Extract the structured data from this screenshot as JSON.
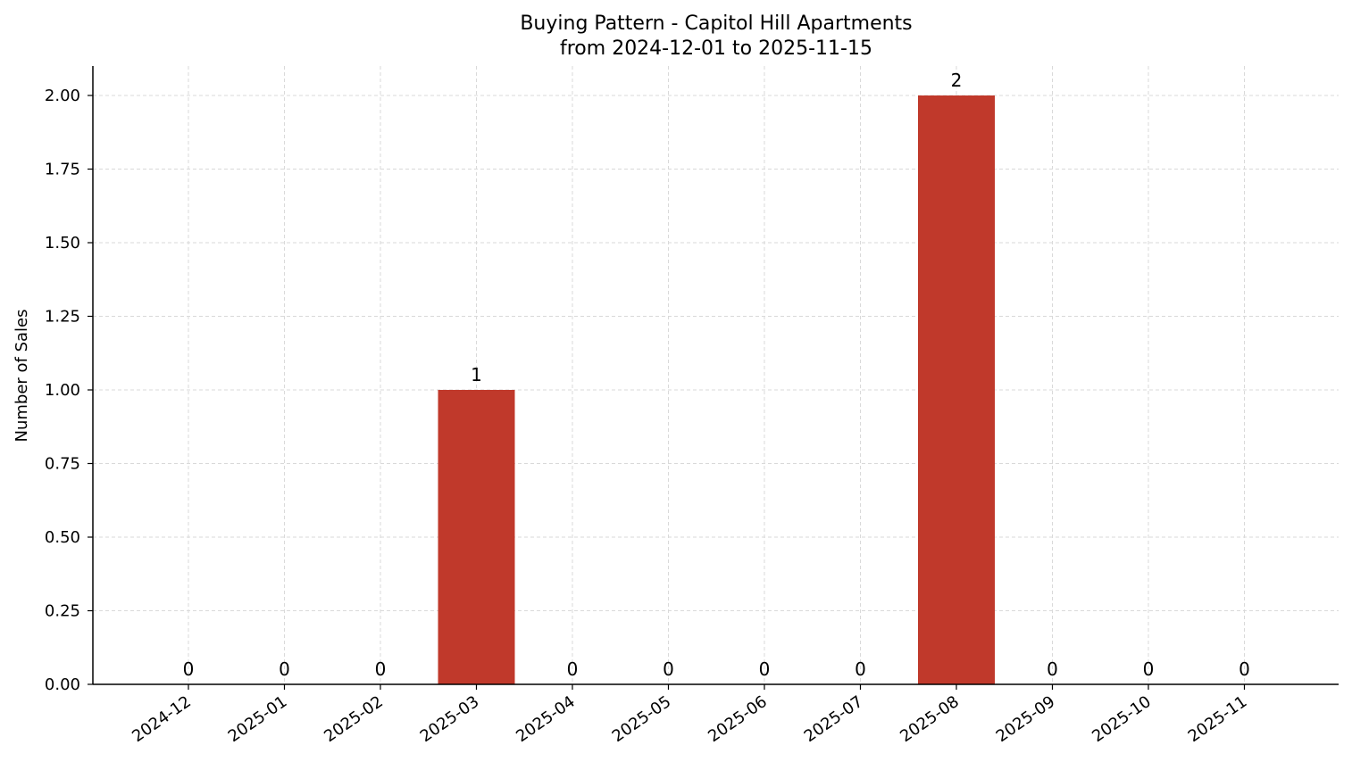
{
  "chart_data": {
    "type": "bar",
    "title": "Buying Pattern - Capitol Hill Apartments",
    "subtitle": "from 2024-12-01 to 2025-11-15",
    "xlabel": "",
    "ylabel": "Number of Sales",
    "categories": [
      "2024-12",
      "2025-01",
      "2025-02",
      "2025-03",
      "2025-04",
      "2025-05",
      "2025-06",
      "2025-07",
      "2025-08",
      "2025-09",
      "2025-10",
      "2025-11"
    ],
    "values": [
      0,
      0,
      0,
      1,
      0,
      0,
      0,
      0,
      2,
      0,
      0,
      0
    ],
    "data_labels": [
      "0",
      "0",
      "0",
      "1",
      "0",
      "0",
      "0",
      "0",
      "2",
      "0",
      "0",
      "0"
    ],
    "ylim": [
      0,
      2.1
    ],
    "yticks": [
      0,
      0.25,
      0.5,
      0.75,
      1.0,
      1.25,
      1.5,
      1.75,
      2.0
    ],
    "ytick_labels": [
      "0.00",
      "0.25",
      "0.50",
      "0.75",
      "1.00",
      "1.25",
      "1.50",
      "1.75",
      "2.00"
    ],
    "grid": true,
    "bar_color": "#c0392b",
    "grid_color": "#d9d9d9"
  }
}
